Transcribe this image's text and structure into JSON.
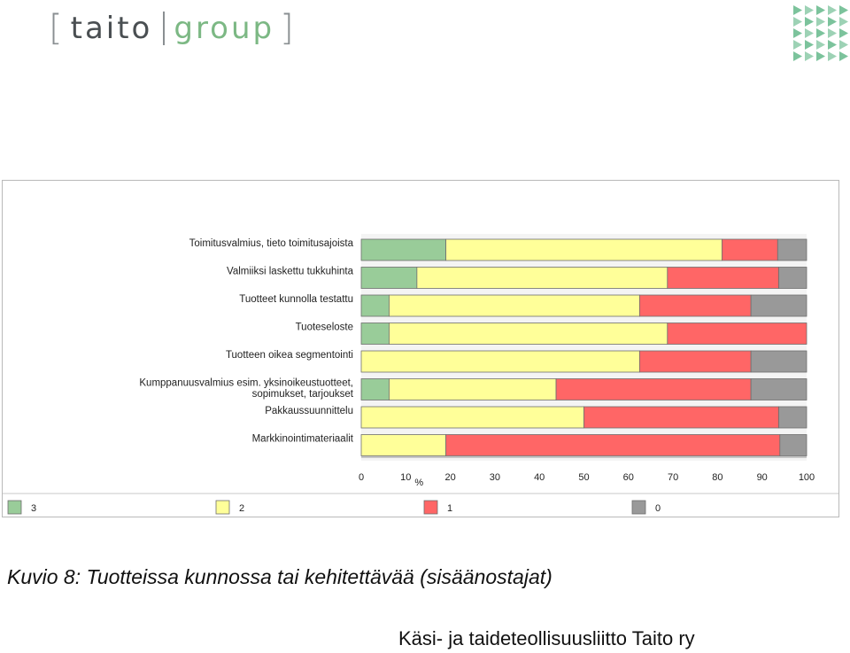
{
  "logo": {
    "left_bracket": "[",
    "word1": "taito",
    "word2": "group",
    "right_bracket": "]",
    "colors": {
      "gray": "#4a4f52",
      "green": "#7cb884",
      "mark_green": "#7cc39c"
    }
  },
  "caption": "Kuvio 8: Tuotteissa kunnossa tai kehitettävää (sisäänostajat)",
  "footer": "Käsi- ja taideteollisuusliitto Taito ry",
  "chart_data": {
    "type": "bar",
    "orientation": "horizontal",
    "stacked": true,
    "categories": [
      "Toimitusvalmius, tieto toimitusajoista",
      "Valmiiksi laskettu tukkuhinta",
      "Tuotteet kunnolla testattu",
      "Tuoteseloste",
      "Tuotteen oikea segmentointi",
      "Kumppanuusvalmius esim. yksinoikeustuotteet, sopimukset, tarjoukset",
      "Pakkaussuunnittelu",
      "Markkinointimateriaalit"
    ],
    "series": [
      {
        "name": "3",
        "color": "#99cc99",
        "values": [
          19,
          12.5,
          6.25,
          6.25,
          0,
          6.25,
          0,
          0
        ]
      },
      {
        "name": "2",
        "color": "#ffff99",
        "values": [
          62,
          56.25,
          56.25,
          62.5,
          62.5,
          37.5,
          50,
          19
        ]
      },
      {
        "name": "1",
        "color": "#ff6666",
        "values": [
          12.5,
          25,
          25,
          31.25,
          25,
          43.75,
          43.75,
          75
        ]
      },
      {
        "name": "0",
        "color": "#999999",
        "values": [
          6.5,
          6.25,
          12.5,
          0,
          12.5,
          12.5,
          6.25,
          6
        ]
      }
    ],
    "xlim": [
      0,
      100
    ],
    "xticks": [
      0,
      10,
      20,
      30,
      40,
      50,
      60,
      70,
      80,
      90,
      100
    ],
    "xlabel": "%",
    "legend_position": "bottom",
    "grid": false
  }
}
